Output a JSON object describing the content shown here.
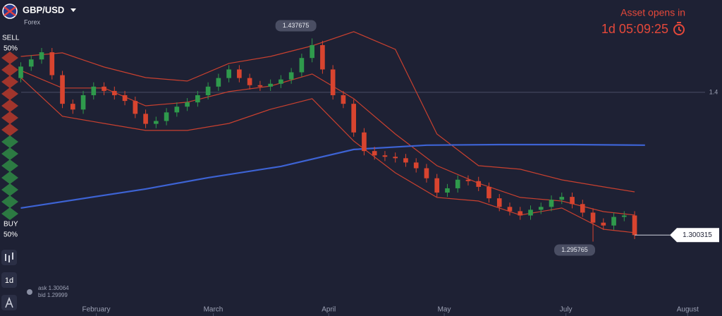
{
  "header": {
    "asset": "GBP/USD",
    "asset_type": "Forex",
    "countdown_title": "Asset opens in",
    "countdown": "1d 05:09:25"
  },
  "sidebar": {
    "sell_label": "SELL",
    "sell_percent": "50%",
    "buy_label": "BUY",
    "buy_percent": "50%",
    "timeframe": "1d"
  },
  "quote": {
    "ask": "ask 1.30064",
    "bid": "bid 1.29999"
  },
  "chart_data": {
    "type": "candlestick",
    "x": [
      0,
      1,
      2,
      3,
      4,
      5,
      6,
      7,
      8,
      9,
      10,
      11,
      12,
      13,
      14,
      15,
      16,
      17,
      18,
      19,
      20,
      21,
      22,
      23,
      24,
      25,
      26,
      27,
      28,
      29,
      30,
      31,
      32,
      33,
      34,
      35,
      36,
      37,
      38,
      39,
      40,
      41,
      42,
      43,
      44,
      45,
      46,
      47,
      48,
      49,
      50,
      51,
      52,
      53,
      54,
      55,
      56,
      57,
      58,
      59
    ],
    "open": [
      1.41,
      1.418,
      1.423,
      1.428,
      1.412,
      1.392,
      1.388,
      1.398,
      1.404,
      1.401,
      1.398,
      1.394,
      1.385,
      1.378,
      1.38,
      1.386,
      1.39,
      1.393,
      1.398,
      1.404,
      1.41,
      1.416,
      1.41,
      1.405,
      1.404,
      1.406,
      1.409,
      1.414,
      1.424,
      1.433,
      1.416,
      1.398,
      1.392,
      1.372,
      1.359,
      1.356,
      1.355,
      1.354,
      1.351,
      1.347,
      1.34,
      1.33,
      1.333,
      1.339,
      1.338,
      1.334,
      1.326,
      1.32,
      1.317,
      1.314,
      1.318,
      1.32,
      1.325,
      1.327,
      1.322,
      1.316,
      1.309,
      1.307,
      1.313,
      1.314
    ],
    "high": [
      1.421,
      1.426,
      1.431,
      1.431,
      1.415,
      1.395,
      1.401,
      1.407,
      1.407,
      1.404,
      1.401,
      1.397,
      1.388,
      1.383,
      1.389,
      1.393,
      1.396,
      1.401,
      1.407,
      1.413,
      1.419,
      1.419,
      1.413,
      1.408,
      1.409,
      1.412,
      1.417,
      1.427,
      1.437675,
      1.436,
      1.419,
      1.401,
      1.395,
      1.375,
      1.362,
      1.359,
      1.358,
      1.357,
      1.354,
      1.35,
      1.343,
      1.336,
      1.342,
      1.342,
      1.341,
      1.337,
      1.329,
      1.323,
      1.32,
      1.321,
      1.323,
      1.328,
      1.33,
      1.33,
      1.325,
      1.319,
      1.312,
      1.316,
      1.317,
      1.317
    ],
    "low": [
      1.407,
      1.415,
      1.42,
      1.409,
      1.389,
      1.385,
      1.385,
      1.395,
      1.398,
      1.395,
      1.391,
      1.382,
      1.375,
      1.375,
      1.377,
      1.383,
      1.387,
      1.39,
      1.395,
      1.401,
      1.407,
      1.407,
      1.402,
      1.401,
      1.401,
      1.403,
      1.406,
      1.411,
      1.421,
      1.413,
      1.395,
      1.389,
      1.369,
      1.356,
      1.353,
      1.352,
      1.351,
      1.348,
      1.344,
      1.337,
      1.327,
      1.327,
      1.33,
      1.335,
      1.331,
      1.323,
      1.317,
      1.314,
      1.311,
      1.311,
      1.315,
      1.317,
      1.322,
      1.319,
      1.313,
      1.295765,
      1.304,
      1.304,
      1.31,
      1.2975
    ],
    "close": [
      1.418,
      1.423,
      1.428,
      1.412,
      1.392,
      1.388,
      1.398,
      1.404,
      1.401,
      1.398,
      1.394,
      1.385,
      1.378,
      1.38,
      1.386,
      1.39,
      1.393,
      1.398,
      1.404,
      1.41,
      1.416,
      1.41,
      1.405,
      1.404,
      1.406,
      1.409,
      1.414,
      1.424,
      1.433,
      1.416,
      1.398,
      1.392,
      1.372,
      1.359,
      1.356,
      1.355,
      1.354,
      1.351,
      1.347,
      1.34,
      1.33,
      1.333,
      1.339,
      1.338,
      1.334,
      1.326,
      1.32,
      1.317,
      1.314,
      1.318,
      1.32,
      1.325,
      1.327,
      1.322,
      1.316,
      1.309,
      1.307,
      1.313,
      1.314,
      1.300315
    ],
    "up_color": "#2f9a4c",
    "down_color": "#d8442f",
    "series": [
      {
        "color": "#c8402f",
        "x": [
          0,
          4,
          8,
          12,
          16,
          20,
          24,
          28,
          32,
          36,
          40,
          44,
          48,
          52,
          56,
          59
        ],
        "values": [
          1.4251,
          1.4276,
          1.4177,
          1.4103,
          1.4079,
          1.4202,
          1.4251,
          1.4325,
          1.4424,
          1.43,
          1.3709,
          1.3488,
          1.3463,
          1.3389,
          1.334,
          1.3305
        ]
      },
      {
        "color": "#c8402f",
        "x": [
          0,
          4,
          8,
          12,
          16,
          20,
          24,
          28,
          32,
          36,
          40,
          44,
          48,
          52,
          56,
          59
        ],
        "values": [
          1.4153,
          1.403,
          1.403,
          1.3906,
          1.3931,
          1.4005,
          1.4044,
          1.4128,
          1.3956,
          1.3709,
          1.3488,
          1.3365,
          1.3266,
          1.3241,
          1.3167,
          1.3143
        ]
      },
      {
        "color": "#c8402f",
        "x": [
          0,
          4,
          8,
          12,
          16,
          20,
          24,
          28,
          32,
          36,
          40,
          44,
          48,
          52,
          56,
          59
        ],
        "values": [
          1.4103,
          1.3833,
          1.3783,
          1.3734,
          1.3734,
          1.3783,
          1.3882,
          1.3956,
          1.366,
          1.3438,
          1.3266,
          1.3241,
          1.3143,
          1.3192,
          1.3044,
          1.302
        ]
      },
      {
        "color": "#3d63d4",
        "x": [
          0,
          12,
          18,
          25,
          32,
          39,
          46,
          53,
          60
        ],
        "values": [
          1.3192,
          1.3325,
          1.3404,
          1.3483,
          1.3601,
          1.3631,
          1.3635,
          1.3635,
          1.3631
        ]
      }
    ],
    "xlim": [
      -2,
      67.4
    ],
    "xticks": [
      {
        "value": 7.25,
        "label": "February"
      },
      {
        "value": 18.5,
        "label": "March"
      },
      {
        "value": 29.6,
        "label": "April"
      },
      {
        "value": 40.7,
        "label": "May"
      },
      {
        "value": 52.4,
        "label": "July"
      },
      {
        "value": 64.1,
        "label": "August"
      }
    ],
    "ylim": [
      1.2438,
      1.4645
    ],
    "yticks": [
      1.4
    ],
    "grid": true
  }
}
